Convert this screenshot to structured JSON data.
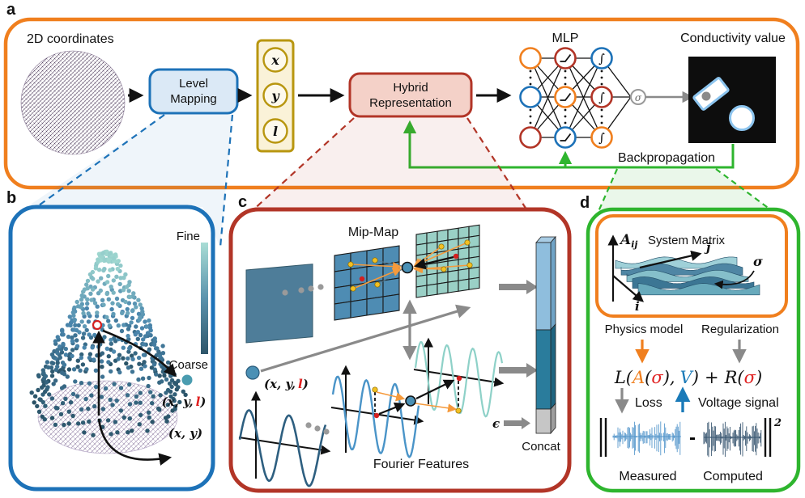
{
  "colors": {
    "orange": "#f07f1e",
    "blue": "#1d72b8",
    "red": "#b23527",
    "green": "#2eb52e",
    "gold": "#b8960f",
    "gold_fill": "#faf2d8",
    "blue_fill": "#dbe9f6",
    "red_fill": "#f4d1c8",
    "gray": "#8a8a8a",
    "accent_red": "#e02020",
    "link_blue": "#1a7ab8",
    "teal_light": "#9ad0c6",
    "steel": "#4e8cb3",
    "slate": "#4e7d99",
    "concat_top": "#8fbedd",
    "concat_mid": "#2a7c9c",
    "concat_gray": "#c6c6c6",
    "sine1": "#2e5f80",
    "sine2": "#4a94c8",
    "sine3": "#8ed1c8",
    "wave_measured": "#4a90c8",
    "wave_computed": "#2a4a66"
  },
  "panel_a": {
    "label": "a",
    "coordinates_label": "2D coordinates",
    "level_mapping_line1": "Level",
    "level_mapping_line2": "Mapping",
    "vector": {
      "x": "x",
      "y": "y",
      "l": "l"
    },
    "hybrid_line1": "Hybrid",
    "hybrid_line2": "Representation",
    "mlp_title": "MLP",
    "sigma": "σ",
    "conductivity_title": "Conductivity value",
    "backprop_label": "Backpropagation"
  },
  "panel_b": {
    "label": "b",
    "fine": "Fine",
    "coarse": "Coarse",
    "coord3_prefix": "(x, y,",
    "coord3_l": "l",
    "coord3_suffix": ")",
    "coord2": "(x, y)"
  },
  "panel_c": {
    "label": "c",
    "mipmap_title": "Mip-Map",
    "coord3_prefix": "(x, y,",
    "coord3_l": "l",
    "coord3_suffix": ")",
    "epsilon": "ϵ",
    "concat_label": "Concat",
    "fourier_label": "Fourier Features"
  },
  "panel_d": {
    "label": "d",
    "matrix_symbol": "A",
    "matrix_subscript": "ij",
    "matrix_title": "System Matrix",
    "axis_i": "i",
    "axis_j": "j",
    "sigma": "σ",
    "physics_label": "Physics model",
    "regularization_label": "Regularization",
    "equation": {
      "p1": "L(",
      "p2": "A",
      "p3": "(",
      "p4": "σ",
      "p5": "),",
      "p6": "V",
      "p7": ")",
      "p8": "+",
      "p9": "R(",
      "p10": "σ",
      "p11": ")"
    },
    "loss_label": "Loss",
    "voltage_label": "Voltage signal",
    "minus": "-",
    "exponent": "2",
    "measured_label": "Measured",
    "computed_label": "Computed"
  },
  "mlp": {
    "layer_colors": [
      [
        "orange",
        "blue",
        "red"
      ],
      [
        "red",
        "orange",
        "blue"
      ],
      [
        "blue",
        "red",
        "orange"
      ]
    ]
  }
}
